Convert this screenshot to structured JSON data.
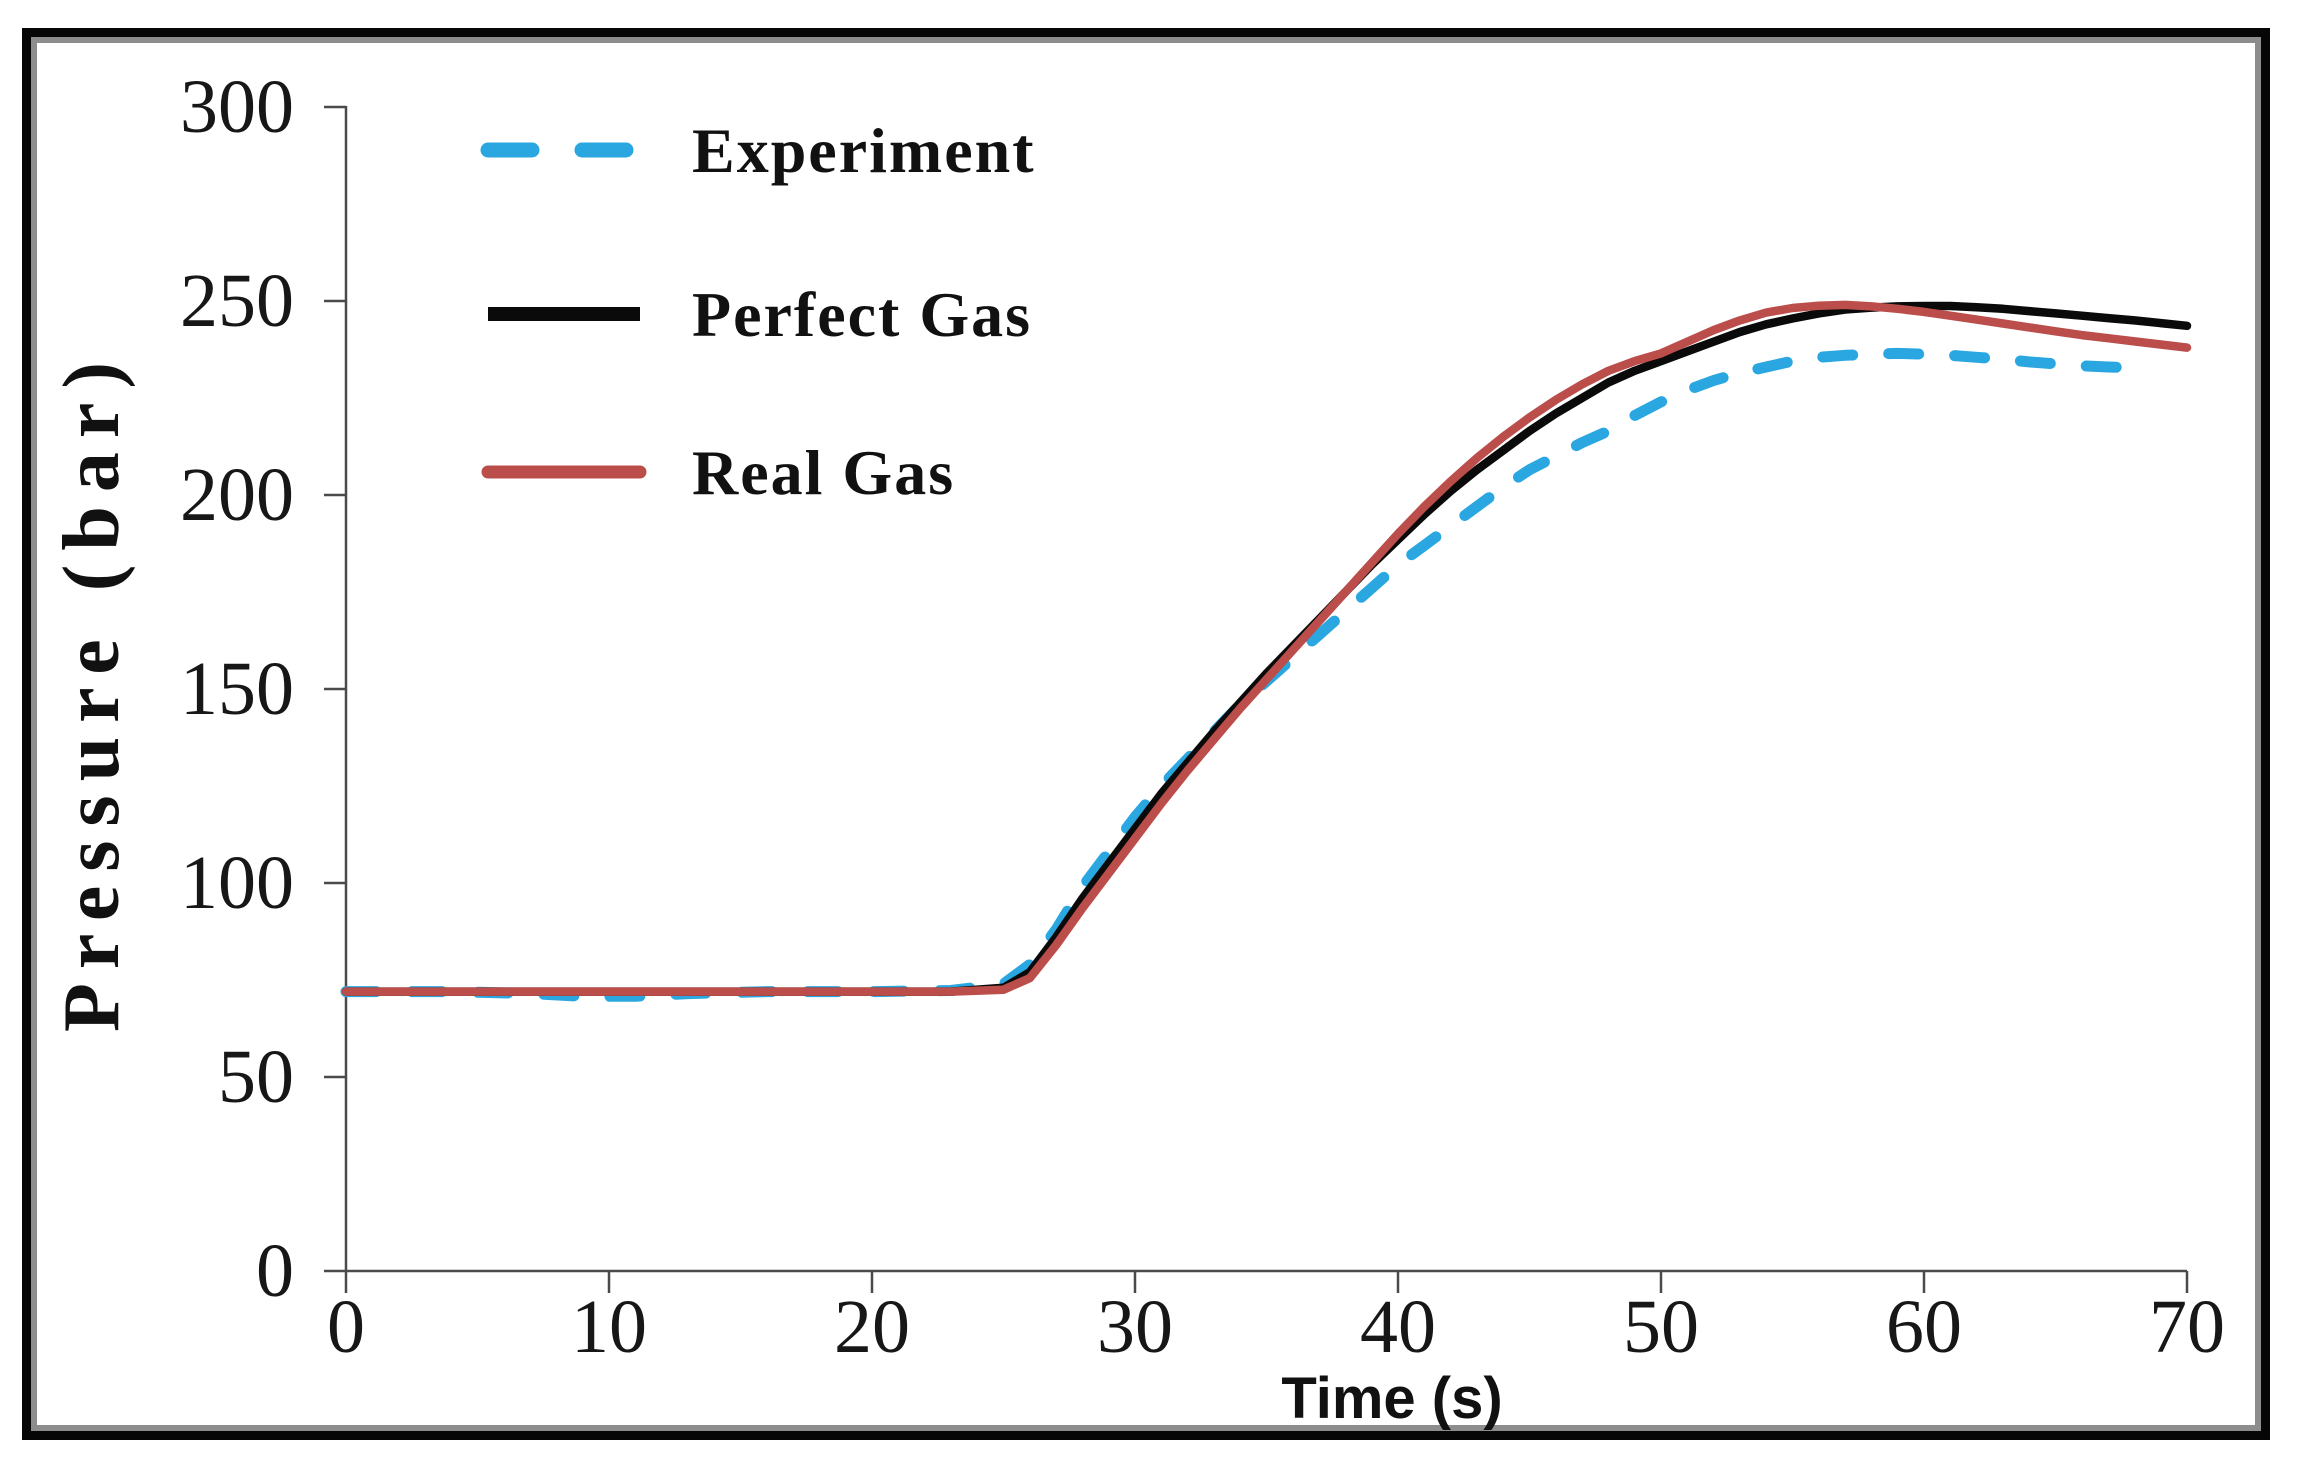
{
  "figure": {
    "background": "#ffffff",
    "border_color": "#060606",
    "inner_border_color": "#8d8d8d",
    "text_color": "#171717"
  },
  "chart_data": {
    "type": "line",
    "title": "",
    "xlabel": "Time (s)",
    "ylabel": "Pressure (bar)",
    "xlim": [
      0,
      70
    ],
    "ylim": [
      0,
      300
    ],
    "xticks": [
      0,
      10,
      20,
      30,
      40,
      50,
      60,
      70
    ],
    "yticks": [
      0,
      50,
      100,
      150,
      200,
      250,
      300
    ],
    "grid": false,
    "legend_position": "upper-left-inside",
    "series": [
      {
        "name": "Experiment",
        "color": "#2aa7e0",
        "style": "dashed",
        "points": [
          [
            0,
            72
          ],
          [
            4,
            72
          ],
          [
            7,
            71.5
          ],
          [
            9,
            70.8
          ],
          [
            11,
            70.8
          ],
          [
            13,
            71.5
          ],
          [
            16,
            72
          ],
          [
            20,
            72
          ],
          [
            23,
            72.3
          ],
          [
            25,
            74
          ],
          [
            26,
            79
          ],
          [
            27,
            88
          ],
          [
            28,
            99
          ],
          [
            29,
            108
          ],
          [
            30,
            117
          ],
          [
            31,
            125
          ],
          [
            32,
            132
          ],
          [
            33,
            139
          ],
          [
            34,
            146
          ],
          [
            35,
            152
          ],
          [
            36,
            158
          ],
          [
            37,
            164
          ],
          [
            38,
            170
          ],
          [
            39,
            176
          ],
          [
            40,
            182
          ],
          [
            41,
            187
          ],
          [
            42,
            192
          ],
          [
            43,
            197
          ],
          [
            44,
            202
          ],
          [
            45,
            206.5
          ],
          [
            46,
            210
          ],
          [
            47,
            213.5
          ],
          [
            48,
            216.5
          ],
          [
            49,
            220.5
          ],
          [
            50,
            224
          ],
          [
            51,
            227
          ],
          [
            52,
            229.5
          ],
          [
            53,
            231.5
          ],
          [
            54,
            233
          ],
          [
            55,
            234.5
          ],
          [
            56,
            235.5
          ],
          [
            57,
            236
          ],
          [
            58,
            236.3
          ],
          [
            59,
            236.5
          ],
          [
            60,
            236.3
          ],
          [
            61,
            236
          ],
          [
            62,
            235.5
          ],
          [
            63,
            235
          ],
          [
            64,
            234.3
          ],
          [
            65,
            233.8
          ],
          [
            66,
            233.3
          ],
          [
            67,
            233
          ],
          [
            68,
            232.8
          ]
        ]
      },
      {
        "name": "Perfect Gas",
        "color": "#0a0a0a",
        "style": "solid",
        "points": [
          [
            0,
            72
          ],
          [
            5,
            72
          ],
          [
            10,
            72
          ],
          [
            15,
            72
          ],
          [
            20,
            72
          ],
          [
            23,
            72
          ],
          [
            25,
            73
          ],
          [
            26,
            77
          ],
          [
            27,
            86
          ],
          [
            28,
            96
          ],
          [
            29,
            105
          ],
          [
            30,
            114
          ],
          [
            31,
            123
          ],
          [
            32,
            131
          ],
          [
            33,
            139
          ],
          [
            34,
            146.5
          ],
          [
            35,
            154
          ],
          [
            36,
            161
          ],
          [
            37,
            168
          ],
          [
            38,
            175
          ],
          [
            39,
            182
          ],
          [
            40,
            188.5
          ],
          [
            41,
            195
          ],
          [
            42,
            201
          ],
          [
            43,
            206.5
          ],
          [
            44,
            211.5
          ],
          [
            45,
            216.5
          ],
          [
            46,
            221
          ],
          [
            47,
            225
          ],
          [
            48,
            229
          ],
          [
            49,
            232
          ],
          [
            50,
            234.5
          ],
          [
            51,
            237
          ],
          [
            52,
            239.5
          ],
          [
            53,
            242
          ],
          [
            54,
            244
          ],
          [
            55,
            245.5
          ],
          [
            56,
            246.8
          ],
          [
            57,
            247.8
          ],
          [
            58,
            248.3
          ],
          [
            59,
            248.6
          ],
          [
            60,
            248.7
          ],
          [
            61,
            248.7
          ],
          [
            62,
            248.4
          ],
          [
            63,
            248
          ],
          [
            64,
            247.4
          ],
          [
            65,
            246.8
          ],
          [
            66,
            246.2
          ],
          [
            67,
            245.6
          ],
          [
            68,
            245
          ],
          [
            69,
            244.3
          ],
          [
            70,
            243.6
          ]
        ]
      },
      {
        "name": "Real Gas",
        "color": "#bb4d4a",
        "style": "solid",
        "points": [
          [
            0,
            72
          ],
          [
            5,
            72
          ],
          [
            10,
            72
          ],
          [
            15,
            72
          ],
          [
            20,
            72
          ],
          [
            23,
            72
          ],
          [
            25,
            72.5
          ],
          [
            26,
            75.5
          ],
          [
            27,
            84
          ],
          [
            28,
            93.5
          ],
          [
            29,
            102.5
          ],
          [
            30,
            111.5
          ],
          [
            31,
            120.5
          ],
          [
            32,
            129
          ],
          [
            33,
            137
          ],
          [
            34,
            145
          ],
          [
            35,
            152.5
          ],
          [
            36,
            160
          ],
          [
            37,
            167.5
          ],
          [
            38,
            175
          ],
          [
            39,
            182.5
          ],
          [
            40,
            190
          ],
          [
            41,
            197
          ],
          [
            42,
            203.5
          ],
          [
            43,
            209.5
          ],
          [
            44,
            215
          ],
          [
            45,
            220
          ],
          [
            46,
            224.5
          ],
          [
            47,
            228.5
          ],
          [
            48,
            232
          ],
          [
            49,
            234.5
          ],
          [
            50,
            236.5
          ],
          [
            51,
            239.5
          ],
          [
            52,
            242.5
          ],
          [
            53,
            245
          ],
          [
            54,
            247
          ],
          [
            55,
            248.2
          ],
          [
            56,
            248.8
          ],
          [
            57,
            249
          ],
          [
            58,
            248.6
          ],
          [
            59,
            248
          ],
          [
            60,
            247.2
          ],
          [
            61,
            246.2
          ],
          [
            62,
            245.2
          ],
          [
            63,
            244.2
          ],
          [
            64,
            243.2
          ],
          [
            65,
            242.2
          ],
          [
            66,
            241.2
          ],
          [
            67,
            240.4
          ],
          [
            68,
            239.6
          ],
          [
            69,
            238.8
          ],
          [
            70,
            238
          ]
        ]
      }
    ]
  }
}
